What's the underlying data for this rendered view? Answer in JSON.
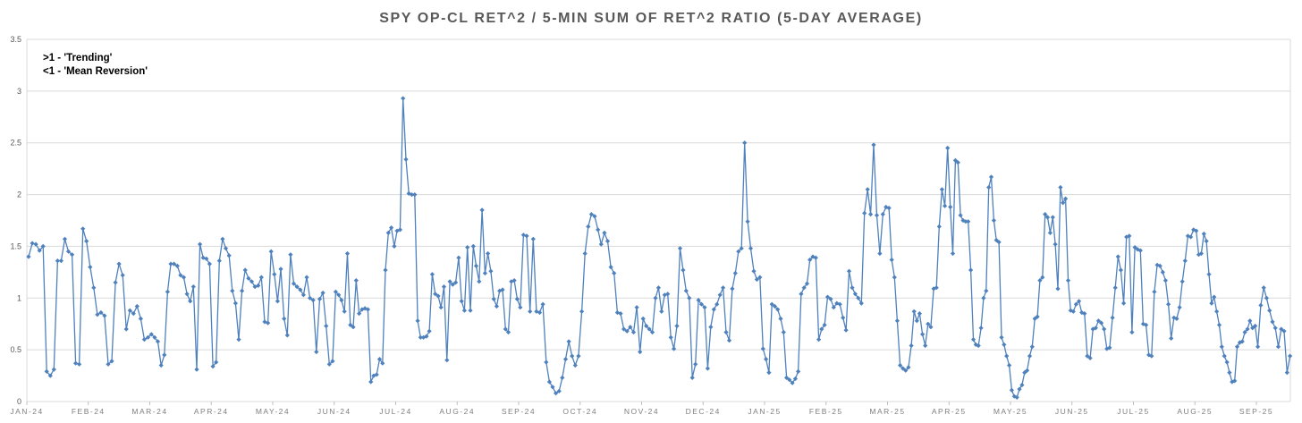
{
  "title": "SPY OP-CL RET^2 / 5-MIN SUM OF RET^2 RATIO (5-DAY AVERAGE)",
  "annotation": {
    "line1": ">1 - 'Trending'",
    "line2": "<1 - 'Mean Reversion'"
  },
  "colors": {
    "series": "#4f81bd",
    "gridline": "#d9d9d9",
    "axis_tick": "#bfbfbf",
    "axis_text": "#7f7f7f",
    "y_axis_text": "#595959",
    "title_text": "#595959",
    "annotation_text": "#000000",
    "background": "#ffffff"
  },
  "chart_data": {
    "type": "line",
    "title": "SPY OP-CL RET^2 / 5-MIN SUM OF RET^2 RATIO (5-DAY AVERAGE)",
    "xlabel": "",
    "ylabel": "",
    "ylim": [
      0,
      3.5
    ],
    "y_ticks": [
      "0",
      "0.5",
      "1",
      "1.5",
      "2",
      "2.5",
      "3",
      "3.5"
    ],
    "grid": "horizontal",
    "legend": "none",
    "marker": "diamond",
    "series_color": "#4f81bd",
    "x_tick_labels": [
      "JAN-24",
      "FEB-24",
      "MAR-24",
      "APR-24",
      "MAY-24",
      "JUN-24",
      "JUL-24",
      "AUG-24",
      "SEP-24",
      "OCT-24",
      "NOV-24",
      "DEC-24",
      "JAN-25",
      "FEB-25",
      "MAR-25",
      "APR-25",
      "MAY-25",
      "JUN-25",
      "JUL-25",
      "AUG-25",
      "SEP-25"
    ],
    "months": [
      {
        "label": "JAN-24",
        "values": [
          1.4,
          1.53,
          1.52,
          1.46,
          1.5,
          0.29,
          0.25,
          0.31,
          1.36,
          1.36,
          1.57,
          1.45,
          1.42,
          0.37,
          0.36,
          1.67,
          1.55
        ]
      },
      {
        "label": "FEB-24",
        "values": [
          1.3,
          1.1,
          0.84,
          0.86,
          0.83,
          0.36,
          0.39,
          1.15,
          1.33,
          1.22,
          0.7,
          0.88,
          0.85,
          0.92,
          0.8,
          0.6,
          0.62
        ]
      },
      {
        "label": "MAR-24",
        "values": [
          0.65,
          0.62,
          0.58,
          0.35,
          0.45,
          1.06,
          1.33,
          1.33,
          1.31,
          1.22,
          1.2,
          1.04,
          0.97,
          1.11,
          0.31,
          1.52,
          1.39,
          1.38,
          1.33
        ]
      },
      {
        "label": "APR-24",
        "values": [
          0.34,
          0.38,
          1.36,
          1.57,
          1.48,
          1.41,
          1.07,
          0.95,
          0.6,
          1.07,
          1.27,
          1.19,
          1.16,
          1.11,
          1.12,
          1.2,
          0.77,
          0.76,
          1.45
        ]
      },
      {
        "label": "MAY-24",
        "values": [
          1.23,
          0.97,
          1.28,
          0.8,
          0.64,
          1.42,
          1.14,
          1.11,
          1.08,
          1.03,
          1.2,
          1.0,
          0.98,
          0.48,
          0.99,
          1.05,
          0.73,
          0.36,
          0.39
        ]
      },
      {
        "label": "JUN-24",
        "values": [
          1.06,
          1.03,
          0.98,
          0.87,
          1.43,
          0.74,
          0.72,
          1.17,
          0.85,
          0.89,
          0.9,
          0.89,
          0.19,
          0.25,
          0.26,
          0.41,
          0.37,
          1.27,
          1.63,
          1.68,
          1.5
        ]
      },
      {
        "label": "JUL-24",
        "values": [
          1.65,
          1.66,
          2.93,
          2.34,
          2.01,
          2.0,
          2.0,
          0.78,
          0.62,
          0.62,
          0.63,
          0.68,
          1.23,
          1.04,
          1.02,
          0.91,
          1.11,
          0.4,
          1.16,
          1.13,
          1.15
        ]
      },
      {
        "label": "AUG-24",
        "values": [
          1.39,
          0.97,
          0.88,
          1.49,
          0.88,
          1.5,
          1.31,
          1.16,
          1.85,
          1.24,
          1.43,
          1.26,
          0.99,
          0.92,
          1.07,
          1.08,
          0.7,
          0.67,
          1.16,
          1.17,
          0.99
        ]
      },
      {
        "label": "SEP-24",
        "values": [
          0.91,
          1.61,
          1.6,
          0.87,
          1.57,
          0.87,
          0.86,
          0.94,
          0.38,
          0.19,
          0.14,
          0.08,
          0.1,
          0.23,
          0.41,
          0.58,
          0.44,
          0.35,
          0.44
        ]
      },
      {
        "label": "OCT-24",
        "values": [
          0.87,
          1.43,
          1.69,
          1.81,
          1.79,
          1.66,
          1.52,
          1.63,
          1.55,
          1.3,
          1.24,
          0.86,
          0.85,
          0.7,
          0.68,
          0.72,
          0.67,
          0.91,
          0.48
        ]
      },
      {
        "label": "NOV-24",
        "values": [
          0.8,
          0.73,
          0.7,
          0.67,
          1.0,
          1.1,
          0.87,
          1.03,
          1.04,
          0.62,
          0.51,
          0.73,
          1.48,
          1.27,
          1.07,
          1.0,
          0.23,
          0.36,
          0.98,
          0.94
        ]
      },
      {
        "label": "DEC-24",
        "values": [
          0.91,
          0.32,
          0.72,
          0.89,
          0.94,
          1.03,
          1.1,
          0.67,
          0.59,
          1.09,
          1.24,
          1.45,
          1.48,
          2.5,
          1.74,
          1.48,
          1.26,
          1.18,
          1.2,
          0.51
        ]
      },
      {
        "label": "JAN-25",
        "values": [
          0.41,
          0.28,
          0.94,
          0.92,
          0.89,
          0.8,
          0.67,
          0.23,
          0.21,
          0.18,
          0.22,
          0.29,
          1.04,
          1.1,
          1.14,
          1.37,
          1.4,
          1.39,
          0.6,
          0.7,
          0.74
        ]
      },
      {
        "label": "FEB-25",
        "values": [
          1.01,
          0.99,
          0.91,
          0.95,
          0.94,
          0.81,
          0.69,
          1.26,
          1.1,
          1.04,
          1.0,
          0.95,
          1.82,
          2.05,
          1.81,
          2.48,
          1.8,
          1.43,
          1.81,
          1.88
        ]
      },
      {
        "label": "MAR-25",
        "values": [
          1.87,
          1.37,
          1.2,
          0.78,
          0.35,
          0.32,
          0.3,
          0.33,
          0.54,
          0.87,
          0.78,
          0.85,
          0.65,
          0.54,
          0.75,
          0.72,
          1.09,
          1.1,
          1.69,
          2.05,
          1.89,
          2.45
        ]
      },
      {
        "label": "APR-25",
        "values": [
          1.88,
          1.43,
          2.33,
          2.31,
          1.8,
          1.75,
          1.74,
          1.74,
          1.27,
          0.6,
          0.55,
          0.54,
          0.71,
          1.0,
          1.07,
          2.07,
          2.17,
          1.75,
          1.56,
          1.54,
          0.62,
          0.55,
          0.44,
          0.35
        ]
      },
      {
        "label": "MAY-25",
        "values": [
          0.11,
          0.05,
          0.04,
          0.12,
          0.16,
          0.28,
          0.3,
          0.44,
          0.53,
          0.8,
          0.82,
          1.17,
          1.2,
          1.81,
          1.78,
          1.63,
          1.78,
          1.52,
          1.09,
          2.07,
          1.92,
          1.96,
          1.17,
          0.88
        ]
      },
      {
        "label": "JUN-25",
        "values": [
          0.87,
          0.94,
          0.97,
          0.86,
          0.85,
          0.44,
          0.42,
          0.7,
          0.71,
          0.78,
          0.76,
          0.7,
          0.51,
          0.52,
          0.81,
          1.1,
          1.4,
          1.27,
          0.95,
          1.59,
          1.6,
          0.67
        ]
      },
      {
        "label": "JUL-25",
        "values": [
          1.49,
          1.47,
          1.46,
          0.75,
          0.74,
          0.45,
          0.44,
          1.06,
          1.32,
          1.31,
          1.25,
          1.17,
          0.94,
          0.61,
          0.81,
          0.8,
          0.91,
          1.16,
          1.36,
          1.6,
          1.59,
          1.66
        ]
      },
      {
        "label": "AUG-25",
        "values": [
          1.65,
          1.42,
          1.43,
          1.62,
          1.55,
          1.23,
          0.95,
          1.01,
          0.87,
          0.74,
          0.53,
          0.44,
          0.38,
          0.28,
          0.19,
          0.2,
          0.53,
          0.57,
          0.58,
          0.67,
          0.7,
          0.78,
          0.71,
          0.73
        ]
      },
      {
        "label": "SEP-25",
        "width_frac": 0.57,
        "values": [
          0.53,
          0.93,
          1.1,
          1.0,
          0.88,
          0.77,
          0.71,
          0.53,
          0.7,
          0.68,
          0.28,
          0.44
        ]
      }
    ]
  }
}
